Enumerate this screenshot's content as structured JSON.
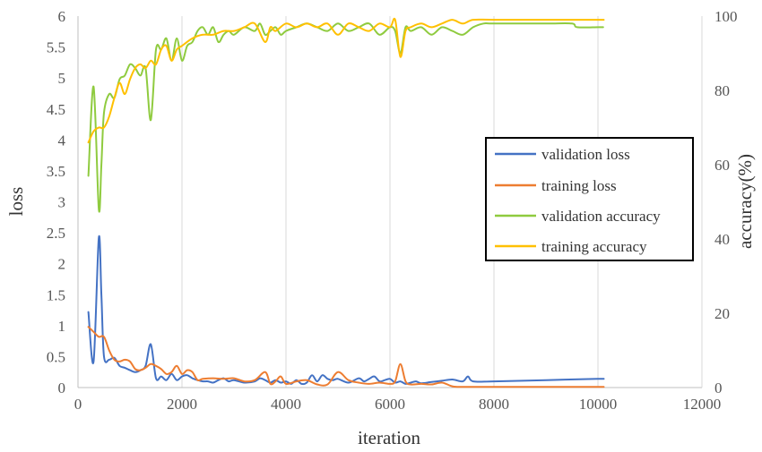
{
  "chart_data": {
    "type": "line",
    "title": "",
    "xlabel": "iteration",
    "ylabel": "loss",
    "y2label": "accuracy(%)",
    "xlim": [
      0,
      12000
    ],
    "ylim": [
      0,
      6
    ],
    "y2lim": [
      0,
      100
    ],
    "x_ticks": [
      0,
      2000,
      4000,
      6000,
      8000,
      10000,
      12000
    ],
    "y_ticks": [
      0,
      0.5,
      1,
      1.5,
      2,
      2.5,
      3,
      3.5,
      4,
      4.5,
      5,
      5.5,
      6
    ],
    "y2_ticks": [
      0,
      20,
      40,
      60,
      80,
      100
    ],
    "grid": "vertical",
    "legend_position": "right",
    "series": [
      {
        "name": "validation loss",
        "axis": "left",
        "color": "#4472C4",
        "points": [
          [
            200,
            1.22
          ],
          [
            300,
            0.42
          ],
          [
            400,
            2.42
          ],
          [
            450,
            1.5
          ],
          [
            500,
            0.5
          ],
          [
            600,
            0.45
          ],
          [
            700,
            0.48
          ],
          [
            800,
            0.35
          ],
          [
            900,
            0.32
          ],
          [
            1000,
            0.28
          ],
          [
            1100,
            0.25
          ],
          [
            1200,
            0.28
          ],
          [
            1300,
            0.35
          ],
          [
            1400,
            0.7
          ],
          [
            1500,
            0.15
          ],
          [
            1600,
            0.18
          ],
          [
            1700,
            0.12
          ],
          [
            1800,
            0.22
          ],
          [
            1900,
            0.12
          ],
          [
            2000,
            0.18
          ],
          [
            2100,
            0.2
          ],
          [
            2200,
            0.15
          ],
          [
            2300,
            0.12
          ],
          [
            2400,
            0.1
          ],
          [
            2500,
            0.1
          ],
          [
            2600,
            0.08
          ],
          [
            2700,
            0.12
          ],
          [
            2800,
            0.15
          ],
          [
            2900,
            0.1
          ],
          [
            3000,
            0.12
          ],
          [
            3200,
            0.08
          ],
          [
            3400,
            0.1
          ],
          [
            3500,
            0.15
          ],
          [
            3600,
            0.12
          ],
          [
            3700,
            0.08
          ],
          [
            3800,
            0.12
          ],
          [
            3900,
            0.08
          ],
          [
            4000,
            0.1
          ],
          [
            4100,
            0.06
          ],
          [
            4200,
            0.12
          ],
          [
            4300,
            0.06
          ],
          [
            4400,
            0.08
          ],
          [
            4500,
            0.2
          ],
          [
            4600,
            0.1
          ],
          [
            4700,
            0.2
          ],
          [
            4800,
            0.14
          ],
          [
            4900,
            0.12
          ],
          [
            5000,
            0.14
          ],
          [
            5200,
            0.08
          ],
          [
            5400,
            0.15
          ],
          [
            5500,
            0.1
          ],
          [
            5600,
            0.14
          ],
          [
            5700,
            0.18
          ],
          [
            5800,
            0.1
          ],
          [
            5900,
            0.12
          ],
          [
            6000,
            0.14
          ],
          [
            6100,
            0.08
          ],
          [
            6200,
            0.1
          ],
          [
            6300,
            0.06
          ],
          [
            6400,
            0.08
          ],
          [
            6500,
            0.1
          ],
          [
            6600,
            0.07
          ],
          [
            6800,
            0.09
          ],
          [
            7000,
            0.11
          ],
          [
            7200,
            0.13
          ],
          [
            7400,
            0.1
          ],
          [
            7500,
            0.18
          ],
          [
            7600,
            0.1
          ],
          [
            8000,
            0.1
          ],
          [
            9000,
            0.12
          ],
          [
            10000,
            0.14
          ],
          [
            10100,
            0.14
          ]
        ]
      },
      {
        "name": "training loss",
        "axis": "left",
        "color": "#ED7D31",
        "points": [
          [
            200,
            0.98
          ],
          [
            300,
            0.9
          ],
          [
            400,
            0.82
          ],
          [
            500,
            0.82
          ],
          [
            600,
            0.6
          ],
          [
            700,
            0.45
          ],
          [
            800,
            0.42
          ],
          [
            900,
            0.45
          ],
          [
            1000,
            0.42
          ],
          [
            1100,
            0.3
          ],
          [
            1200,
            0.28
          ],
          [
            1300,
            0.32
          ],
          [
            1400,
            0.38
          ],
          [
            1500,
            0.35
          ],
          [
            1600,
            0.3
          ],
          [
            1700,
            0.22
          ],
          [
            1800,
            0.25
          ],
          [
            1900,
            0.35
          ],
          [
            2000,
            0.22
          ],
          [
            2100,
            0.28
          ],
          [
            2200,
            0.25
          ],
          [
            2300,
            0.12
          ],
          [
            2400,
            0.14
          ],
          [
            2600,
            0.15
          ],
          [
            2800,
            0.14
          ],
          [
            3000,
            0.15
          ],
          [
            3200,
            0.1
          ],
          [
            3400,
            0.12
          ],
          [
            3600,
            0.25
          ],
          [
            3700,
            0.06
          ],
          [
            3800,
            0.1
          ],
          [
            3900,
            0.18
          ],
          [
            4000,
            0.06
          ],
          [
            4200,
            0.1
          ],
          [
            4400,
            0.12
          ],
          [
            4600,
            0.05
          ],
          [
            4800,
            0.05
          ],
          [
            5000,
            0.25
          ],
          [
            5200,
            0.12
          ],
          [
            5400,
            0.08
          ],
          [
            5600,
            0.06
          ],
          [
            5800,
            0.08
          ],
          [
            6000,
            0.06
          ],
          [
            6100,
            0.1
          ],
          [
            6200,
            0.38
          ],
          [
            6300,
            0.1
          ],
          [
            6400,
            0.05
          ],
          [
            6600,
            0.06
          ],
          [
            6800,
            0.05
          ],
          [
            7000,
            0.08
          ],
          [
            7200,
            0.02
          ],
          [
            7400,
            0.01
          ],
          [
            8000,
            0.01
          ],
          [
            9000,
            0.01
          ],
          [
            10000,
            0.01
          ],
          [
            10100,
            0.01
          ]
        ]
      },
      {
        "name": "validation accuracy",
        "axis": "right",
        "color": "#8FCB3F",
        "points": [
          [
            200,
            57
          ],
          [
            300,
            81
          ],
          [
            400,
            48
          ],
          [
            450,
            60
          ],
          [
            500,
            74
          ],
          [
            600,
            79
          ],
          [
            700,
            78
          ],
          [
            800,
            83
          ],
          [
            900,
            84
          ],
          [
            1000,
            87
          ],
          [
            1100,
            86
          ],
          [
            1200,
            84
          ],
          [
            1300,
            86
          ],
          [
            1400,
            72
          ],
          [
            1500,
            91
          ],
          [
            1600,
            91
          ],
          [
            1700,
            94
          ],
          [
            1800,
            88
          ],
          [
            1900,
            94
          ],
          [
            2000,
            88
          ],
          [
            2100,
            92
          ],
          [
            2200,
            93
          ],
          [
            2300,
            96
          ],
          [
            2400,
            97
          ],
          [
            2500,
            95
          ],
          [
            2600,
            97
          ],
          [
            2700,
            93
          ],
          [
            2800,
            95
          ],
          [
            2900,
            96
          ],
          [
            3000,
            95
          ],
          [
            3200,
            97
          ],
          [
            3400,
            96
          ],
          [
            3500,
            98
          ],
          [
            3600,
            95
          ],
          [
            3700,
            96
          ],
          [
            3800,
            97
          ],
          [
            3900,
            95
          ],
          [
            4000,
            96
          ],
          [
            4200,
            97
          ],
          [
            4400,
            98
          ],
          [
            4600,
            97
          ],
          [
            4800,
            96
          ],
          [
            5000,
            98
          ],
          [
            5200,
            96
          ],
          [
            5400,
            97
          ],
          [
            5600,
            98
          ],
          [
            5800,
            95
          ],
          [
            6000,
            97
          ],
          [
            6100,
            96
          ],
          [
            6200,
            90
          ],
          [
            6300,
            97
          ],
          [
            6400,
            96
          ],
          [
            6600,
            97
          ],
          [
            6800,
            95
          ],
          [
            7000,
            97
          ],
          [
            7200,
            96
          ],
          [
            7400,
            95
          ],
          [
            7600,
            97
          ],
          [
            7800,
            98
          ],
          [
            8000,
            98
          ],
          [
            9000,
            98
          ],
          [
            9500,
            98
          ],
          [
            9600,
            97
          ],
          [
            10000,
            97
          ],
          [
            10100,
            97
          ]
        ]
      },
      {
        "name": "training accuracy",
        "axis": "right",
        "color": "#FFC000",
        "points": [
          [
            200,
            66
          ],
          [
            300,
            69
          ],
          [
            400,
            70
          ],
          [
            500,
            70
          ],
          [
            600,
            73
          ],
          [
            700,
            78
          ],
          [
            800,
            82
          ],
          [
            900,
            79
          ],
          [
            1000,
            83
          ],
          [
            1100,
            86
          ],
          [
            1200,
            87
          ],
          [
            1300,
            86
          ],
          [
            1400,
            88
          ],
          [
            1500,
            87
          ],
          [
            1600,
            91
          ],
          [
            1700,
            92
          ],
          [
            1800,
            88
          ],
          [
            1900,
            91
          ],
          [
            2000,
            92
          ],
          [
            2200,
            94
          ],
          [
            2400,
            95
          ],
          [
            2600,
            95
          ],
          [
            2800,
            96
          ],
          [
            3000,
            96
          ],
          [
            3200,
            97
          ],
          [
            3400,
            98
          ],
          [
            3600,
            93
          ],
          [
            3700,
            97
          ],
          [
            3800,
            96
          ],
          [
            4000,
            98
          ],
          [
            4200,
            97
          ],
          [
            4400,
            98
          ],
          [
            4600,
            97
          ],
          [
            4800,
            98
          ],
          [
            5000,
            95
          ],
          [
            5200,
            98
          ],
          [
            5400,
            97
          ],
          [
            5600,
            96
          ],
          [
            5800,
            98
          ],
          [
            6000,
            97
          ],
          [
            6100,
            99
          ],
          [
            6200,
            89
          ],
          [
            6300,
            96
          ],
          [
            6400,
            97
          ],
          [
            6600,
            98
          ],
          [
            6800,
            97
          ],
          [
            7000,
            98
          ],
          [
            7200,
            99
          ],
          [
            7400,
            98
          ],
          [
            7600,
            99
          ],
          [
            8000,
            99
          ],
          [
            9000,
            99
          ],
          [
            10000,
            99
          ],
          [
            10100,
            99
          ]
        ]
      }
    ]
  }
}
